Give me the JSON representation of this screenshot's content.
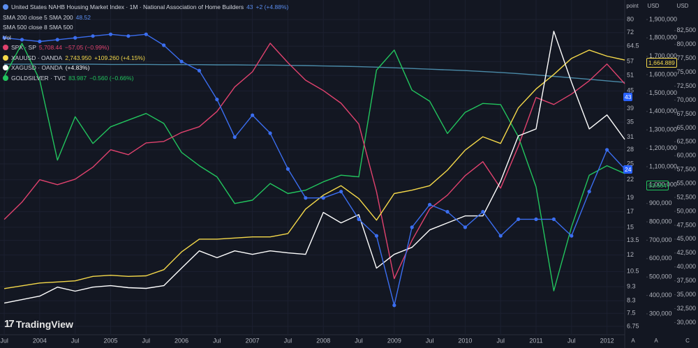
{
  "chart_data": {
    "type": "line",
    "logo": "TradingView",
    "legend_rows": [
      [
        "United States NAHB Housing Market Index · 1M · National Association of Home Builders",
        "43",
        "+2 (+4.88%)"
      ],
      [
        "SMA 200 close 5 SMA 200",
        "48.52"
      ],
      [
        "SMA 500 close 8 SMA 500"
      ],
      [
        "Vol"
      ],
      [
        "SPX · SP",
        "5,708.44",
        "−57.05 (−0.99%)"
      ],
      [
        "XAUUSD · OANDA",
        "2,743.950",
        "+109.260 (+4.15%)"
      ],
      [
        "XAGUSD · OANDA",
        "(+4.83%)"
      ],
      [
        "GOLDSILVER · TVC",
        "83.987",
        "−0.560 (−0.66%)"
      ]
    ],
    "legend_colors": [
      "#5b8def",
      "#5b8def",
      "#b2b5be",
      "#b2b5be",
      "#e0426e",
      "#f5d94a",
      "#ffffff",
      "#22c55e"
    ],
    "axis_headers": [
      "point",
      "USD",
      "USD"
    ],
    "axis_footers": [
      "A",
      "A",
      "C"
    ],
    "price_labels": [
      {
        "text": "43",
        "color": "#2962ff"
      },
      {
        "text": "24",
        "color": "#2962ff"
      },
      {
        "text": "1,664.889",
        "color": "#f5d94a"
      },
      {
        "text": "53.664",
        "color": "#22c55e"
      }
    ],
    "x": [
      2003.5,
      2003.75,
      2004,
      2004.25,
      2004.5,
      2004.75,
      2005,
      2005.25,
      2005.5,
      2005.75,
      2006,
      2006.25,
      2006.5,
      2006.75,
      2007,
      2007.25,
      2007.5,
      2007.75,
      2008,
      2008.25,
      2008.5,
      2008.75,
      2009,
      2009.25,
      2009.5,
      2009.75,
      2010,
      2010.25,
      2010.5,
      2010.75,
      2011,
      2011.25,
      2011.5,
      2011.75,
      2012,
      2012.25
    ],
    "xlim": [
      2003.44,
      2012.25
    ],
    "xticks": [
      {
        "value": 2003.5,
        "label": "Jul"
      },
      2004,
      {
        "value": 2004.5,
        "label": "Jul"
      },
      2005,
      {
        "value": 2005.5,
        "label": "Jul"
      },
      2006,
      {
        "value": 2006.5,
        "label": "Jul"
      },
      2007,
      {
        "value": 2007.5,
        "label": "Jul"
      },
      2008,
      {
        "value": 2008.5,
        "label": "Jul"
      },
      2009,
      {
        "value": 2009.5,
        "label": "Jul"
      },
      2010,
      {
        "value": 2010.5,
        "label": "Jul"
      },
      2011,
      {
        "value": 2011.5,
        "label": "Jul"
      },
      2012
    ],
    "ylim": [
      6.31,
      93.6
    ],
    "log_scale": true,
    "yticks": [
      80,
      72,
      64.5,
      57,
      51,
      45,
      39,
      35,
      31,
      28,
      25,
      22,
      19,
      17,
      15,
      13.5,
      12,
      10.5,
      9.3,
      8.3,
      7.5,
      6.75
    ],
    "y2lim": [
      186000,
      2006000
    ],
    "y2ticks": [
      {
        "value": 1900000,
        "label": "1,900,000"
      },
      {
        "value": 1800000,
        "label": "1,800,000"
      },
      {
        "value": 1700000,
        "label": "1,700,000"
      },
      {
        "value": 1600000,
        "label": "1,600,000"
      },
      {
        "value": 1500000,
        "label": "1,500,000"
      },
      {
        "value": 1400000,
        "label": "1,400,000"
      },
      {
        "value": 1300000,
        "label": "1,300,000"
      },
      {
        "value": 1200000,
        "label": "1,200,000"
      },
      {
        "value": 1100000,
        "label": "1,100,000"
      },
      {
        "value": 1000000,
        "label": "1,000,000"
      },
      {
        "value": 900000,
        "label": "900,000"
      },
      {
        "value": 800000,
        "label": "800,000"
      },
      {
        "value": 700000,
        "label": "700,000"
      },
      {
        "value": 600000,
        "label": "600,000"
      },
      {
        "value": 500000,
        "label": "500,000"
      },
      {
        "value": 400000,
        "label": "400,000"
      },
      {
        "value": 300000,
        "label": "300,000"
      }
    ],
    "y3lim": [
      27800,
      88000
    ],
    "y3ticks": [
      {
        "value": 82500,
        "label": "82,500"
      },
      {
        "value": 80000,
        "label": "80,000"
      },
      {
        "value": 77500,
        "label": "77,500"
      },
      {
        "value": 75000,
        "label": "75,000"
      },
      {
        "value": 72500,
        "label": "72,500"
      },
      {
        "value": 70000,
        "label": "70,000"
      },
      {
        "value": 67500,
        "label": "67,500"
      },
      {
        "value": 65000,
        "label": "65,000"
      },
      {
        "value": 62500,
        "label": "62,500"
      },
      {
        "value": 60000,
        "label": "60,000"
      },
      {
        "value": 57500,
        "label": "57,500"
      },
      {
        "value": 55000,
        "label": "55,000"
      },
      {
        "value": 52500,
        "label": "52,500"
      },
      {
        "value": 50000,
        "label": "50,000"
      },
      {
        "value": 47500,
        "label": "47,500"
      },
      {
        "value": 45000,
        "label": "45,000"
      },
      {
        "value": 42500,
        "label": "42,500"
      },
      {
        "value": 40000,
        "label": "40,000"
      },
      {
        "value": 37500,
        "label": "37,500"
      },
      {
        "value": 35000,
        "label": "35,000"
      },
      {
        "value": 32500,
        "label": "32,500"
      },
      {
        "value": 30000,
        "label": "30,000"
      }
    ],
    "grid": true,
    "series": [
      {
        "name": "SMA 500 close 8 SMA 500",
        "color": "#4a8aa8",
        "axis": "y",
        "markers": false,
        "values": [
          55.8,
          55.8,
          55.8,
          55.8,
          55.8,
          55.8,
          55.7,
          55.7,
          55.7,
          55.6,
          55.6,
          55.6,
          55.5,
          55.5,
          55.4,
          55.4,
          55.3,
          55.2,
          55.0,
          54.9,
          54.7,
          54.5,
          54.2,
          53.9,
          53.6,
          53.3,
          53.0,
          52.6,
          52.2,
          51.7,
          51.2,
          50.6,
          50.0,
          49.4,
          48.8,
          48.2
        ]
      },
      {
        "name": "GOLDSILVER · TVC",
        "color": "#22c55e",
        "axis": "y3",
        "markers": false,
        "values": [
          74200,
          80200,
          73600,
          59200,
          67000,
          62200,
          65200,
          66400,
          67600,
          65800,
          60600,
          58200,
          56200,
          51400,
          52000,
          55000,
          53200,
          53800,
          55300,
          56500,
          56200,
          75400,
          79000,
          71800,
          69800,
          64000,
          67800,
          69400,
          69200,
          63400,
          54400,
          35700,
          47200,
          56500,
          58200,
          56800
        ]
      },
      {
        "name": "SPX · SP",
        "color": "#e0426e",
        "axis": "y2",
        "markers": false,
        "values": [
          813000,
          907000,
          1029000,
          1002000,
          1032000,
          1097000,
          1192000,
          1165000,
          1229000,
          1237000,
          1286000,
          1317000,
          1400000,
          1533000,
          1616000,
          1771000,
          1665000,
          1570000,
          1514000,
          1445000,
          1332000,
          964000,
          491000,
          699000,
          870000,
          945000,
          1051000,
          1127000,
          983000,
          1211000,
          1476000,
          1438000,
          1495000,
          1567000,
          1658000,
          1551000
        ]
      },
      {
        "name": "XAUUSD · OANDA",
        "color": "#f5d94a",
        "axis": "y3",
        "markers": false,
        "values": [
          36100,
          36600,
          37100,
          37300,
          37500,
          38300,
          38500,
          38300,
          38400,
          39500,
          42700,
          45000,
          45000,
          45200,
          45400,
          45400,
          46000,
          50400,
          52900,
          54600,
          52300,
          48400,
          53200,
          53800,
          54600,
          57400,
          61000,
          63400,
          62200,
          68600,
          72000,
          74600,
          77500,
          79000,
          77900,
          77200
        ]
      },
      {
        "name": "XAGUSD · OANDA",
        "color": "#ffffff",
        "axis": "y2",
        "markers": false,
        "values": [
          358000,
          377000,
          396000,
          445000,
          423000,
          445000,
          453000,
          442000,
          438000,
          453000,
          548000,
          642000,
          605000,
          642000,
          623000,
          642000,
          631000,
          623000,
          851000,
          794000,
          839000,
          548000,
          623000,
          661000,
          756000,
          794000,
          832000,
          832000,
          1021000,
          1267000,
          1305000,
          1836000,
          1559000,
          1305000,
          1381000,
          1248000
        ]
      },
      {
        "name": "United States NAHB Housing Market Index · 1M · National Association of Home Builders",
        "color": "#3b6ef0",
        "axis": "y",
        "markers": true,
        "values": [
          69,
          68,
          67,
          68,
          69,
          70,
          71,
          70,
          71,
          65,
          57,
          53,
          42,
          31,
          37,
          32,
          24,
          19,
          19,
          20,
          16,
          14,
          8,
          15,
          18,
          17,
          15,
          17,
          14,
          16,
          16,
          16,
          14,
          20,
          28,
          24
        ]
      }
    ]
  }
}
